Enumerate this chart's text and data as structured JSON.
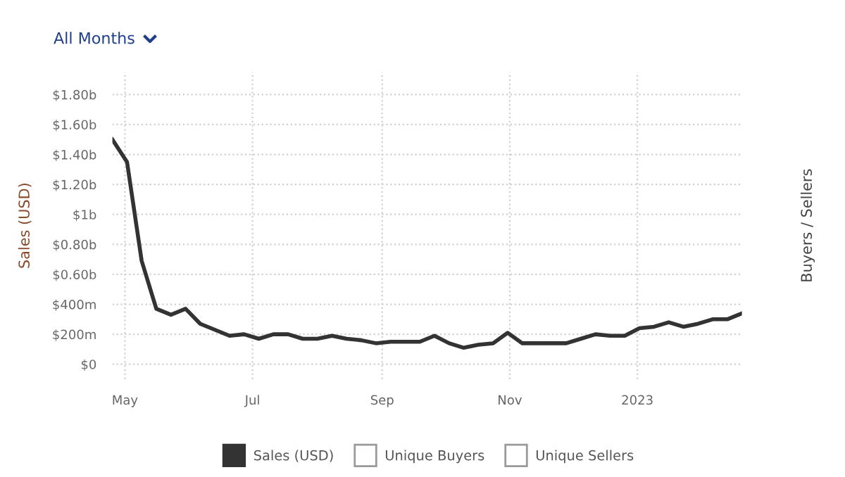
{
  "chart_data": {
    "type": "line",
    "annotations": [
      "All Months"
    ],
    "ylabel": "Sales (USD)",
    "y2label": "Buyers / Sellers",
    "x": [
      "2022-04-25",
      "2022-05-02",
      "2022-05-09",
      "2022-05-16",
      "2022-05-23",
      "2022-05-30",
      "2022-06-06",
      "2022-06-13",
      "2022-06-20",
      "2022-06-27",
      "2022-07-04",
      "2022-07-11",
      "2022-07-18",
      "2022-07-25",
      "2022-08-01",
      "2022-08-08",
      "2022-08-15",
      "2022-08-22",
      "2022-08-29",
      "2022-09-05",
      "2022-09-12",
      "2022-09-19",
      "2022-09-26",
      "2022-10-03",
      "2022-10-10",
      "2022-10-17",
      "2022-10-24",
      "2022-10-31",
      "2022-11-07",
      "2022-11-14",
      "2022-11-21",
      "2022-11-28",
      "2022-12-05",
      "2022-12-12",
      "2022-12-19",
      "2022-12-26",
      "2023-01-02",
      "2023-01-09",
      "2023-01-16",
      "2023-01-23",
      "2023-01-30",
      "2023-02-06",
      "2023-02-13",
      "2023-02-20"
    ],
    "series": [
      {
        "name": "Sales (USD)",
        "color": "#333333",
        "values": [
          1500000000.0,
          1350000000.0,
          690000000.0,
          370000000.0,
          330000000.0,
          370000000.0,
          270000000.0,
          230000000.0,
          190000000.0,
          200000000.0,
          170000000.0,
          200000000.0,
          200000000.0,
          170000000.0,
          170000000.0,
          190000000.0,
          170000000.0,
          160000000.0,
          140000000.0,
          150000000.0,
          150000000.0,
          150000000.0,
          190000000.0,
          140000000.0,
          110000000.0,
          130000000.0,
          140000000.0,
          210000000.0,
          140000000.0,
          140000000.0,
          140000000.0,
          140000000.0,
          170000000.0,
          200000000.0,
          190000000.0,
          190000000.0,
          240000000.0,
          250000000.0,
          280000000.0,
          250000000.0,
          270000000.0,
          300000000.0,
          300000000.0,
          340000000.0
        ]
      },
      {
        "name": "Unique Buyers",
        "color": "#9a9a9a",
        "values": [
          null,
          null,
          null,
          null,
          null,
          null,
          null,
          null,
          null,
          null,
          null,
          null,
          null,
          null,
          null,
          null,
          null,
          null,
          null,
          null,
          null,
          null,
          null,
          null,
          null,
          null,
          null,
          null,
          null,
          null,
          null,
          null,
          null,
          null,
          null,
          null,
          null,
          null,
          null,
          null,
          null,
          null,
          null,
          null
        ]
      },
      {
        "name": "Unique Sellers",
        "color": "#9a9a9a",
        "values": [
          null,
          null,
          null,
          null,
          null,
          null,
          null,
          null,
          null,
          null,
          null,
          null,
          null,
          null,
          null,
          null,
          null,
          null,
          null,
          null,
          null,
          null,
          null,
          null,
          null,
          null,
          null,
          null,
          null,
          null,
          null,
          null,
          null,
          null,
          null,
          null,
          null,
          null,
          null,
          null,
          null,
          null,
          null,
          null
        ]
      }
    ],
    "xlim": [
      "2022-04-25",
      "2023-02-20"
    ],
    "xticks": [
      {
        "value": "2022-05-01",
        "label": "May"
      },
      {
        "value": "2022-07-01",
        "label": "Jul"
      },
      {
        "value": "2022-09-01",
        "label": "Sep"
      },
      {
        "value": "2022-11-01",
        "label": "Nov"
      },
      {
        "value": "2023-01-01",
        "label": "2023"
      }
    ],
    "ylim": [
      -100000000.0,
      1950000000.0
    ],
    "yticks": [
      {
        "value": 0,
        "label": "$0"
      },
      {
        "value": 200000000.0,
        "label": "$200m"
      },
      {
        "value": 400000000.0,
        "label": "$400m"
      },
      {
        "value": 600000000.0,
        "label": "$0.60b"
      },
      {
        "value": 800000000.0,
        "label": "$0.80b"
      },
      {
        "value": 1000000000.0,
        "label": "$1b"
      },
      {
        "value": 1200000000.0,
        "label": "$1.20b"
      },
      {
        "value": 1400000000.0,
        "label": "$1.40b"
      },
      {
        "value": 1600000000.0,
        "label": "$1.60b"
      },
      {
        "value": 1800000000.0,
        "label": "$1.80b"
      }
    ],
    "grid": true,
    "line_style": "solid",
    "marker": "none",
    "legend": "bottom"
  }
}
